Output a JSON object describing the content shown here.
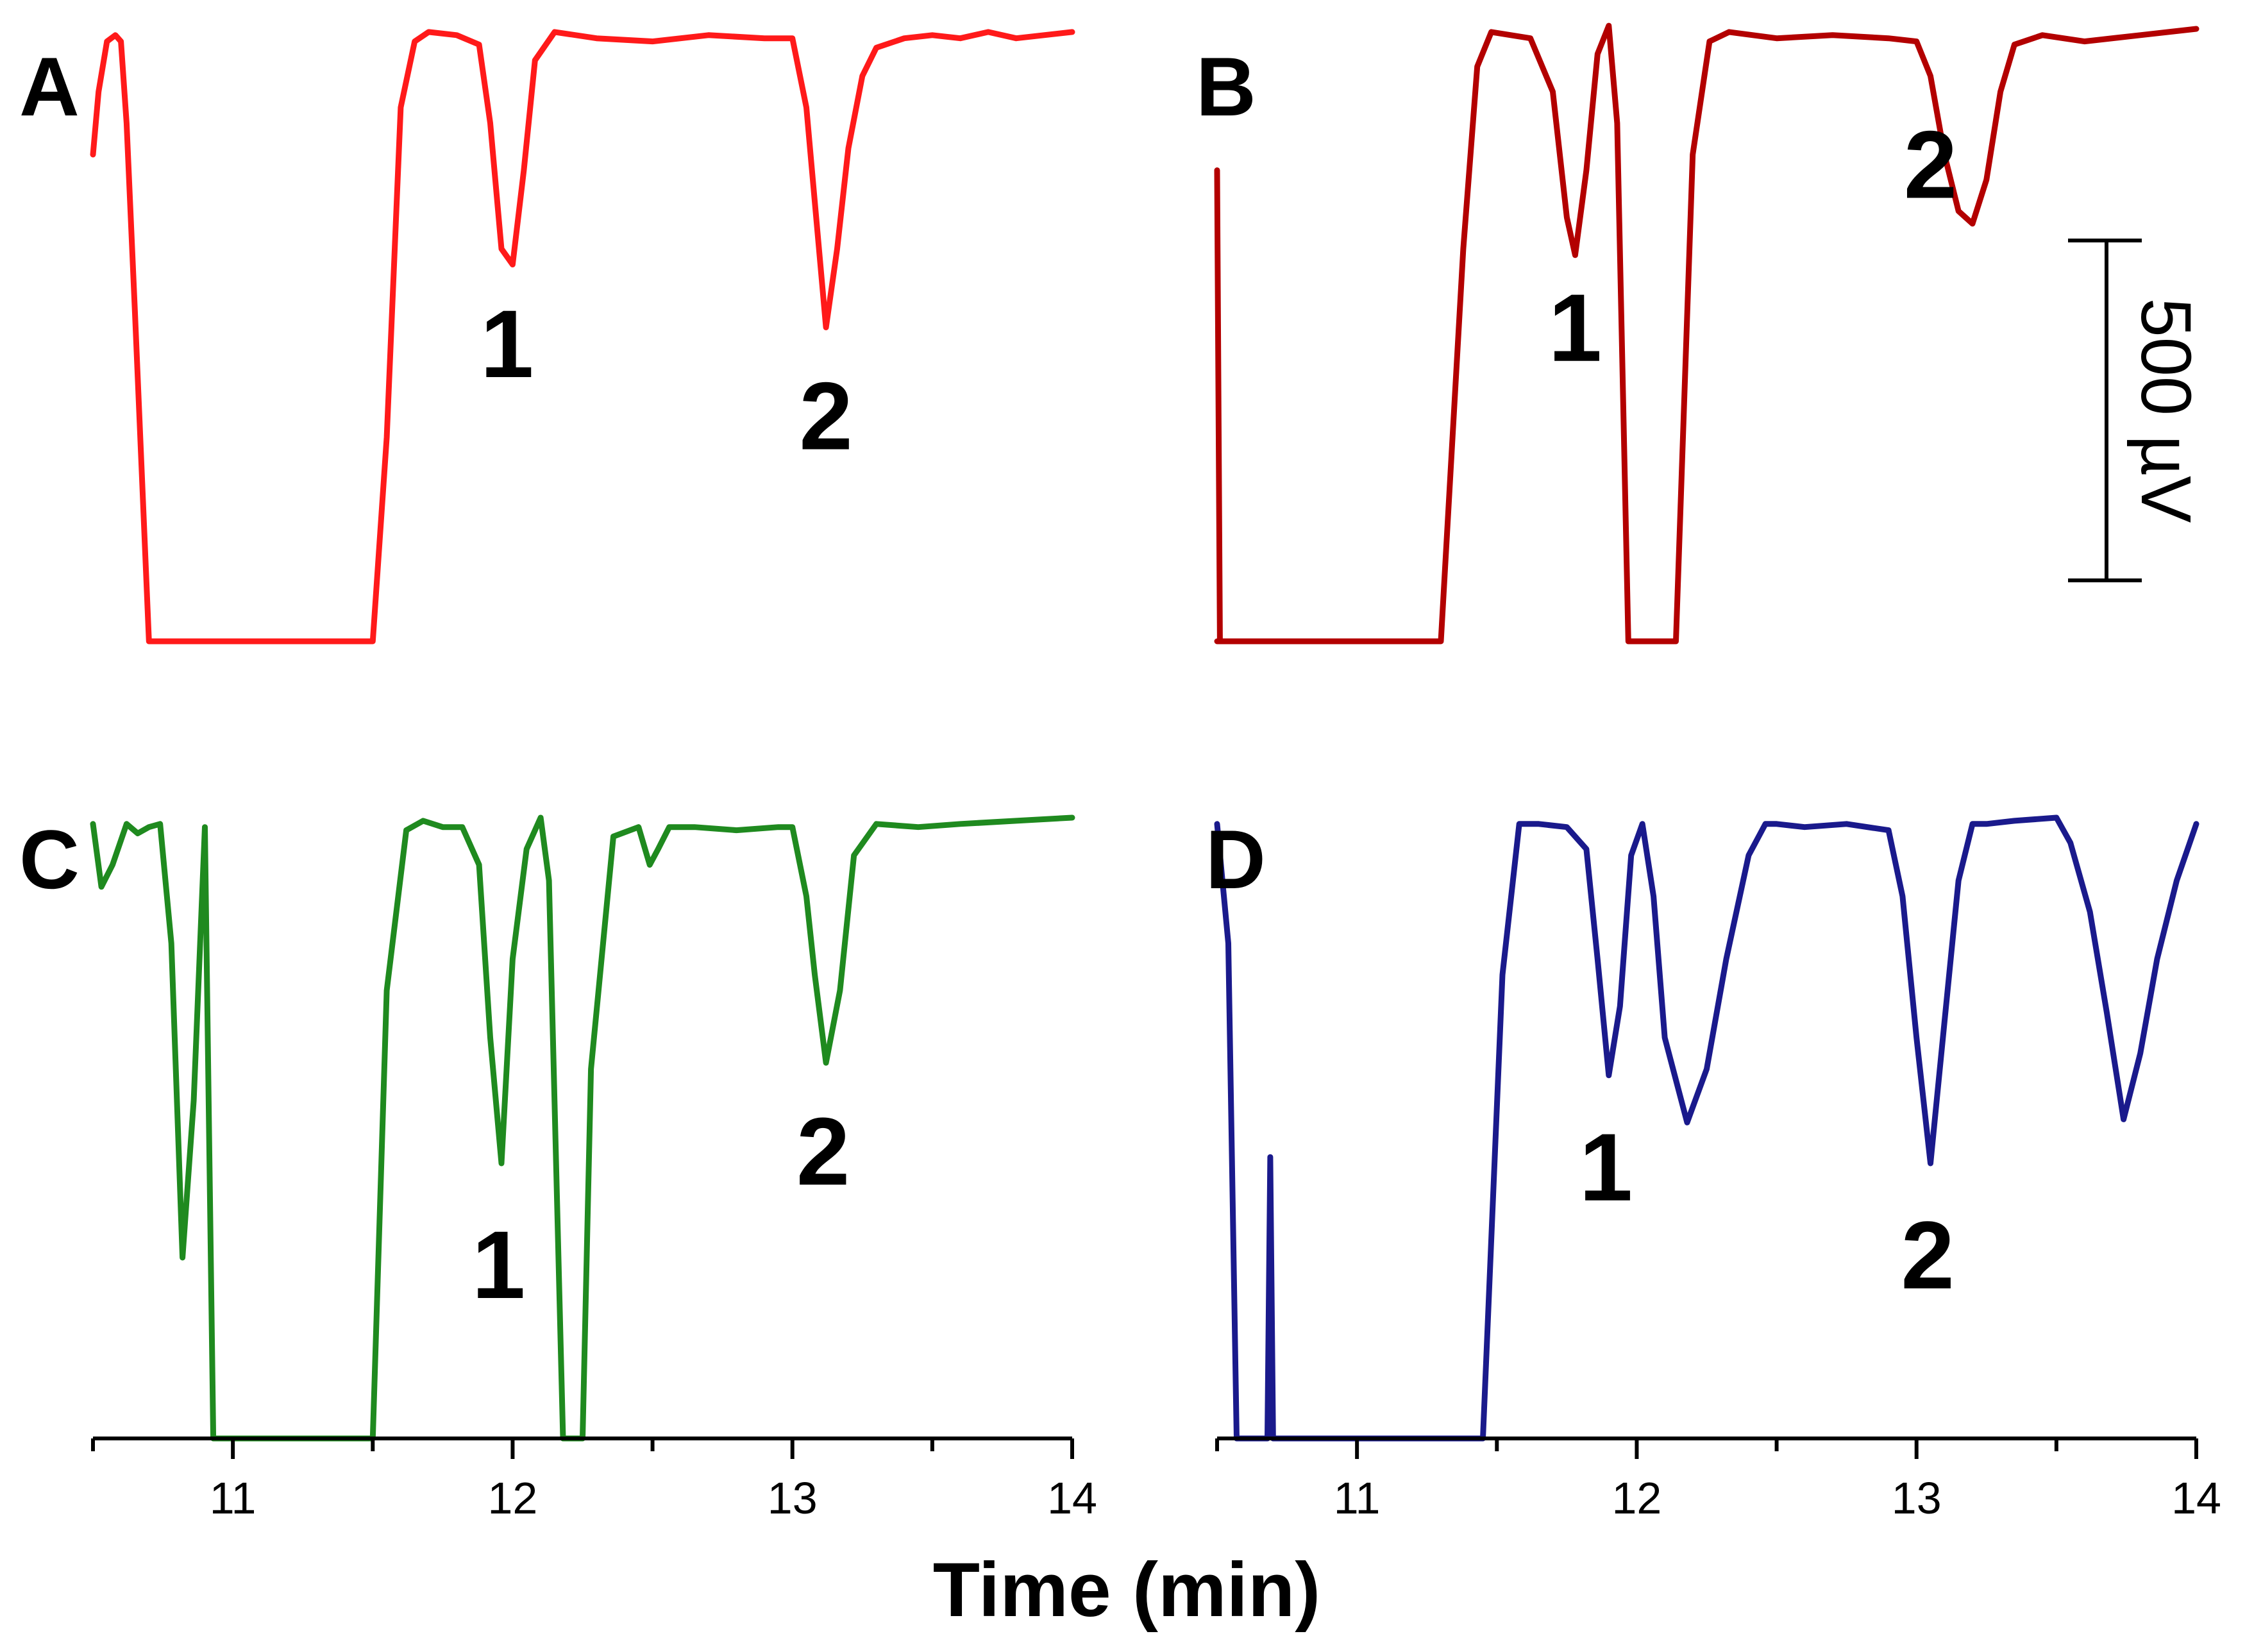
{
  "chart_data": [
    {
      "type": "line",
      "panel_label": "A",
      "color": "#ff1a1a",
      "xlim": [
        10.5,
        14
      ],
      "series": [
        {
          "x": [
            10.5,
            10.52,
            10.55,
            10.58,
            10.6,
            10.62,
            10.65,
            10.7,
            11.5,
            11.55,
            11.6,
            11.65,
            11.7,
            11.8,
            11.88,
            11.92,
            11.96,
            12.0,
            12.04,
            12.08,
            12.15,
            12.3,
            12.5,
            12.7,
            12.9,
            13.0,
            13.05,
            13.08,
            13.12,
            13.16,
            13.2,
            13.25,
            13.3,
            13.4,
            13.5,
            13.6,
            13.7,
            13.8,
            14.0
          ],
          "y": [
            0.6,
            0.8,
            0.96,
            0.98,
            0.96,
            0.7,
            0.1,
            -1.0,
            -1.0,
            -0.3,
            0.75,
            0.96,
            0.99,
            0.98,
            0.95,
            0.7,
            0.3,
            0.25,
            0.55,
            0.9,
            0.99,
            0.97,
            0.96,
            0.98,
            0.97,
            0.97,
            0.75,
            0.45,
            0.05,
            0.3,
            0.62,
            0.85,
            0.94,
            0.97,
            0.98,
            0.97,
            0.99,
            0.97,
            0.99
          ]
        }
      ],
      "peaks": [
        {
          "label": "1",
          "x": 11.98
        },
        {
          "label": "2",
          "x": 13.12
        }
      ]
    },
    {
      "type": "line",
      "panel_label": "B",
      "color": "#b30000",
      "xlim": [
        10.5,
        14
      ],
      "series": [
        {
          "x": [
            10.5,
            10.51,
            10.5,
            11.3,
            11.38,
            11.43,
            11.48,
            11.55,
            11.62,
            11.7,
            11.75,
            11.78,
            11.82,
            11.86,
            11.9,
            11.93,
            11.97,
            12.14,
            12.2,
            12.26,
            12.33,
            12.5,
            12.7,
            12.9,
            13.0,
            13.05,
            13.1,
            13.15,
            13.2,
            13.25,
            13.3,
            13.35,
            13.45,
            13.6,
            13.8,
            14.0
          ],
          "y": [
            0.55,
            -1.0,
            -1.0,
            -1.0,
            0.3,
            0.88,
            0.99,
            0.98,
            0.97,
            0.8,
            0.4,
            0.28,
            0.55,
            0.92,
            1.01,
            0.7,
            -1.0,
            -1.0,
            0.6,
            0.96,
            0.99,
            0.97,
            0.98,
            0.97,
            0.96,
            0.85,
            0.6,
            0.42,
            0.38,
            0.52,
            0.8,
            0.95,
            0.98,
            0.96,
            0.98,
            1.0
          ]
        }
      ],
      "peaks": [
        {
          "label": "1",
          "x": 11.78
        },
        {
          "label": "2",
          "x": 13.05
        }
      ]
    },
    {
      "type": "line",
      "panel_label": "C",
      "color": "#1f8a1f",
      "xlim": [
        10.5,
        14
      ],
      "series": [
        {
          "x": [
            10.5,
            10.53,
            10.57,
            10.62,
            10.66,
            10.7,
            10.74,
            10.78,
            10.82,
            10.86,
            10.9,
            10.93,
            10.95,
            11.5,
            11.55,
            11.62,
            11.68,
            11.75,
            11.82,
            11.88,
            11.92,
            11.96,
            12.0,
            12.05,
            12.1,
            12.13,
            12.18,
            12.2,
            12.25,
            12.28,
            12.36,
            12.45,
            12.49,
            12.52,
            12.56,
            12.65,
            12.8,
            12.95,
            13.0,
            13.05,
            13.08,
            13.12,
            13.17,
            13.22,
            13.3,
            13.45,
            13.6,
            13.8,
            14.0
          ],
          "y": [
            0.98,
            0.78,
            0.85,
            0.98,
            0.95,
            0.97,
            0.98,
            0.6,
            -0.4,
            0.1,
            0.97,
            -1.0,
            -1.0,
            -1.0,
            0.45,
            0.96,
            0.99,
            0.97,
            0.97,
            0.85,
            0.3,
            -0.1,
            0.55,
            0.9,
            1.0,
            0.8,
            -1.0,
            -1.0,
            -1.0,
            0.2,
            0.94,
            0.97,
            0.85,
            0.9,
            0.97,
            0.97,
            0.96,
            0.97,
            0.97,
            0.75,
            0.5,
            0.22,
            0.45,
            0.88,
            0.98,
            0.97,
            0.98,
            0.99,
            1.0
          ]
        }
      ],
      "peaks": [
        {
          "label": "1",
          "x": 11.95
        },
        {
          "label": "2",
          "x": 13.11
        }
      ]
    },
    {
      "type": "line",
      "panel_label": "D",
      "color": "#1a1a8c",
      "xlim": [
        10.5,
        14
      ],
      "series": [
        {
          "x": [
            10.5,
            10.54,
            10.57,
            10.57,
            10.68,
            10.69,
            10.7,
            10.71,
            10.72,
            10.72,
            11.45,
            11.52,
            11.58,
            11.65,
            11.75,
            11.82,
            11.86,
            11.9,
            11.94,
            11.98,
            12.02,
            12.06,
            12.1,
            12.18,
            12.25,
            12.32,
            12.4,
            12.46,
            12.5,
            12.6,
            12.75,
            12.9,
            12.95,
            13.0,
            13.05,
            13.1,
            13.15,
            13.2,
            13.25,
            13.35,
            13.5,
            13.55,
            13.62,
            13.68,
            13.74,
            13.8,
            13.86,
            13.93,
            14.0
          ],
          "y": [
            0.98,
            0.6,
            -1.0,
            -1.0,
            -1.0,
            -0.08,
            -1.0,
            -1.0,
            -1.0,
            -1.0,
            -1.0,
            0.5,
            0.98,
            0.98,
            0.97,
            0.9,
            0.55,
            0.18,
            0.4,
            0.88,
            0.98,
            0.75,
            0.3,
            0.03,
            0.2,
            0.55,
            0.88,
            0.98,
            0.98,
            0.97,
            0.98,
            0.96,
            0.75,
            0.3,
            -0.1,
            0.35,
            0.8,
            0.98,
            0.98,
            0.99,
            1.0,
            0.92,
            0.7,
            0.38,
            0.04,
            0.25,
            0.55,
            0.8,
            0.98
          ]
        }
      ],
      "peaks": [
        {
          "label": "1",
          "x": 11.89
        },
        {
          "label": "2",
          "x": 13.04
        }
      ]
    }
  ],
  "axis": {
    "xticks": [
      11,
      12,
      13,
      14
    ],
    "tick_labels": [
      "11",
      "12",
      "13",
      "14"
    ],
    "xlabel": "Time (min)"
  },
  "scale_bar": {
    "value": 500,
    "label": "500 µV"
  }
}
